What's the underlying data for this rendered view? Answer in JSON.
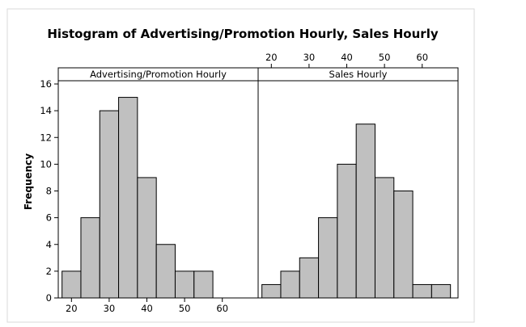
{
  "chart_data": {
    "type": "bar",
    "title": "Histogram of Advertising/Promotion Hourly, Sales Hourly",
    "ylabel": "Frequency",
    "ylim": [
      0,
      16
    ],
    "y_ticks": [
      0,
      2,
      4,
      6,
      8,
      10,
      12,
      14,
      16
    ],
    "x_ticks": [
      20,
      30,
      40,
      50,
      60
    ],
    "bin_width": 5,
    "grid": false,
    "panels": [
      {
        "name": "Advertising/Promotion Hourly",
        "xlim": [
          16.5,
          69.5
        ],
        "x_ticks_position": "bottom",
        "bin_starts": [
          17.5,
          22.5,
          27.5,
          32.5,
          37.5,
          42.5,
          47.5,
          52.5
        ],
        "values": [
          2,
          6,
          14,
          15,
          9,
          4,
          2,
          2
        ]
      },
      {
        "name": "Sales Hourly",
        "xlim": [
          16.5,
          69.5
        ],
        "x_ticks_position": "top",
        "bin_starts": [
          17.5,
          22.5,
          27.5,
          32.5,
          37.5,
          42.5,
          47.5,
          52.5,
          57.5,
          62.5
        ],
        "values": [
          1,
          2,
          3,
          6,
          10,
          13,
          9,
          8,
          1,
          1
        ]
      }
    ]
  },
  "colors": {
    "bar_fill": "#c0c0c0",
    "frame_background": "#d9d9d9",
    "plot_background": "#ffffff",
    "axis": "#000000"
  }
}
